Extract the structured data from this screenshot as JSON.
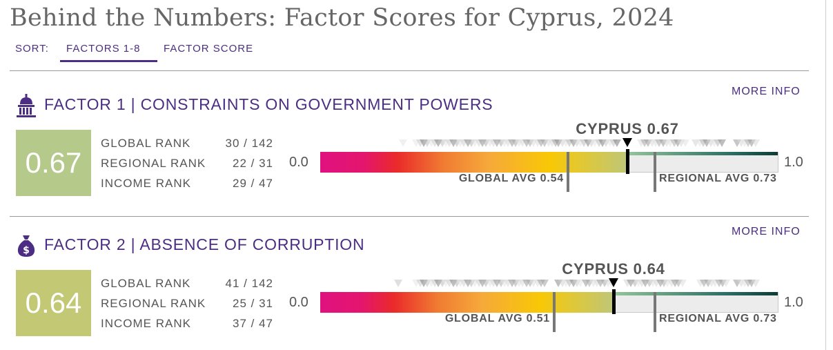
{
  "page": {
    "title": "Behind the Numbers: Factor Scores for Cyprus, 2024"
  },
  "sort": {
    "label": "SORT:",
    "options": [
      "FACTORS 1-8",
      "FACTOR SCORE"
    ],
    "selected": "FACTORS 1-8",
    "accent": "#4b2e83"
  },
  "scale": {
    "min": 0.0,
    "max": 1.0,
    "min_label": "0.0",
    "max_label": "1.0"
  },
  "colors": {
    "brand": "#4b2e83",
    "score_box_factor1": "#b4c98a",
    "score_box_factor2": "#c2c874",
    "avg_marker": "#777777",
    "country_marker": "#000000"
  },
  "factors": [
    {
      "title": "FACTOR 1 | CONSTRAINTS ON GOVERNMENT POWERS",
      "icon": "capitol-icon",
      "more_info": "MORE INFO",
      "score": 0.67,
      "score_label": "0.67",
      "country_label": "CYPRUS 0.67",
      "ranks": [
        {
          "label": "GLOBAL RANK",
          "value": "30 / 142"
        },
        {
          "label": "REGIONAL RANK",
          "value": "22 / 31"
        },
        {
          "label": "INCOME RANK",
          "value": "29 / 47"
        }
      ],
      "global_avg": {
        "value": 0.54,
        "label": "GLOBAL AVG 0.54"
      },
      "regional_avg": {
        "value": 0.73,
        "label": "REGIONAL AVG 0.73"
      }
    },
    {
      "title": "FACTOR 2 | ABSENCE OF CORRUPTION",
      "icon": "money-bag-icon",
      "more_info": "MORE INFO",
      "score": 0.64,
      "score_label": "0.64",
      "country_label": "CYPRUS 0.64",
      "ranks": [
        {
          "label": "GLOBAL RANK",
          "value": "41 / 142"
        },
        {
          "label": "REGIONAL RANK",
          "value": "25 / 31"
        },
        {
          "label": "INCOME RANK",
          "value": "37 / 47"
        }
      ],
      "global_avg": {
        "value": 0.51,
        "label": "GLOBAL AVG 0.51"
      },
      "regional_avg": {
        "value": 0.73,
        "label": "REGIONAL AVG 0.73"
      }
    }
  ]
}
